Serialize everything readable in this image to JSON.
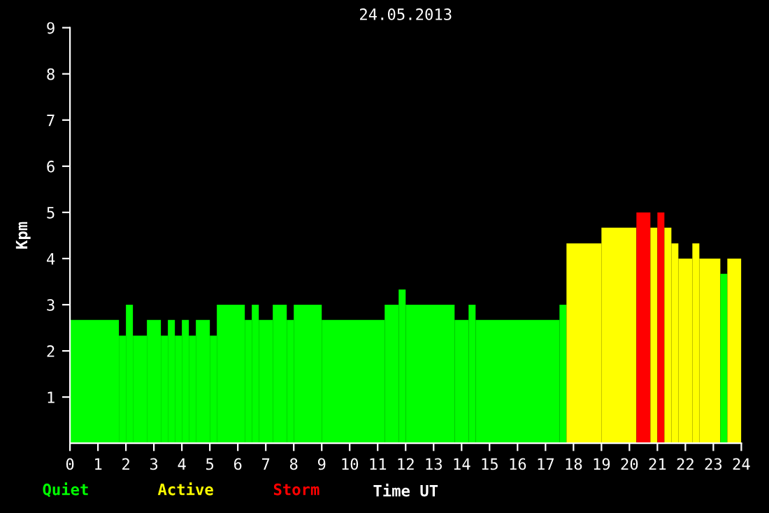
{
  "chart_data": {
    "type": "histogram",
    "title": "24.05.2013",
    "xlabel": "Time UT",
    "ylabel": "Kpm",
    "bins": [
      0,
      1.75,
      2,
      2.25,
      2.75,
      3.25,
      3.5,
      3.75,
      4,
      4.25,
      4.5,
      5,
      5.25,
      6.25,
      6.5,
      6.75,
      7.25,
      7.75,
      8,
      9,
      11.25,
      11.75,
      12,
      13.75,
      14.25,
      14.5,
      17.5,
      17.75,
      19,
      20.25,
      20.75,
      21,
      21.25,
      21.5,
      21.75,
      22.25,
      22.5,
      23.25,
      23.5,
      24
    ],
    "values": [
      2.67,
      2.33,
      3,
      2.33,
      2.67,
      2.33,
      2.67,
      2.33,
      2.67,
      2.33,
      2.67,
      2.33,
      3,
      2.67,
      3,
      2.67,
      3,
      2.67,
      3,
      2.67,
      3,
      3.33,
      3,
      2.67,
      3,
      2.67,
      3,
      4.33,
      4.67,
      5,
      4.67,
      5,
      4.67,
      4.33,
      4,
      4.33,
      4,
      3.67,
      4
    ],
    "colors": [
      "#00ff00",
      "#00ff00",
      "#00ff00",
      "#00ff00",
      "#00ff00",
      "#00ff00",
      "#00ff00",
      "#00ff00",
      "#00ff00",
      "#00ff00",
      "#00ff00",
      "#00ff00",
      "#00ff00",
      "#00ff00",
      "#00ff00",
      "#00ff00",
      "#00ff00",
      "#00ff00",
      "#00ff00",
      "#00ff00",
      "#00ff00",
      "#00ff00",
      "#00ff00",
      "#00ff00",
      "#00ff00",
      "#00ff00",
      "#00ff00",
      "#ffff00",
      "#ffff00",
      "#ff0000",
      "#ffff00",
      "#ff0000",
      "#ffff00",
      "#ffff00",
      "#ffff00",
      "#ffff00",
      "#ffff00",
      "#00ff00",
      "#ffff00"
    ],
    "annotations": [
      "Quiet",
      "Active",
      "Storm"
    ],
    "xlim": [
      0,
      24
    ],
    "xticks": [
      0,
      1,
      2,
      3,
      4,
      5,
      6,
      7,
      8,
      9,
      10,
      11,
      12,
      13,
      14,
      15,
      16,
      17,
      18,
      19,
      20,
      21,
      22,
      23,
      24
    ],
    "ylim": [
      0,
      9
    ],
    "yticks": [
      1,
      2,
      3,
      4,
      5,
      6,
      7,
      8,
      9
    ]
  }
}
